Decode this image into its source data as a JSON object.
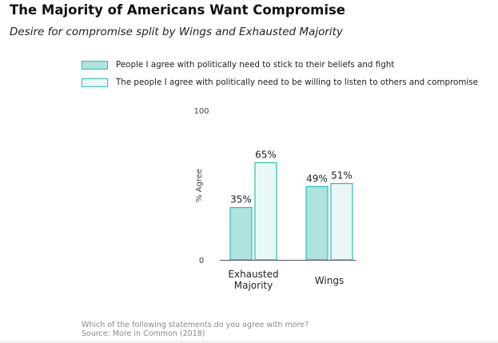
{
  "title": "The Majority of Americans Want Compromise",
  "subtitle": "Desire for compromise split by Wings and Exhausted Majority",
  "footer": {
    "question": "Which of the following statements do you agree with more?",
    "source": "Source: More in Common (2018)"
  },
  "colors": {
    "stick_fill": "#aee3df",
    "compromise_fill": "#e9f7f6",
    "bar_stroke": "#2bbdb5",
    "axis": "#555555"
  },
  "chart_data": {
    "type": "bar",
    "categories": [
      [
        "Exhausted",
        "Majority"
      ],
      [
        "Wings"
      ]
    ],
    "series": [
      {
        "name": "People I agree with politically need to stick to their beliefs and fight",
        "values": [
          35,
          49
        ],
        "labels": [
          "35%",
          "49%"
        ]
      },
      {
        "name": "The people I agree with politically need to be willing to listen to others and compromise",
        "values": [
          65,
          51
        ],
        "labels": [
          "65%",
          "51%"
        ]
      }
    ],
    "ylabel": "% Agree",
    "ylim": [
      0,
      100
    ],
    "yticks": [
      "0",
      "100"
    ],
    "legend": "top"
  }
}
